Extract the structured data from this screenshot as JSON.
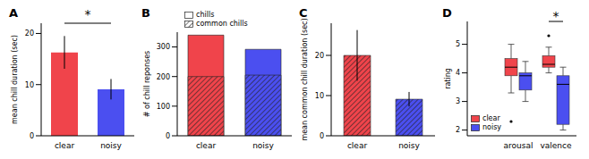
{
  "chart_data": [
    {
      "type": "bar",
      "title": "A",
      "categories": [
        "clear",
        "noisy"
      ],
      "values": [
        16.3,
        9.1
      ],
      "errors": [
        3.2,
        2.0
      ],
      "colors": [
        "#f0444b",
        "#4b4ff0"
      ],
      "y_label": "mean chill duration (sec)",
      "ylim": [
        0,
        22
      ],
      "yticks": [
        0,
        10,
        20
      ],
      "annotations": [
        {
          "text": "*",
          "between": [
            "clear",
            "noisy"
          ]
        }
      ]
    },
    {
      "type": "bar",
      "title": "B",
      "categories": [
        "clear",
        "noisy"
      ],
      "series": [
        {
          "name": "chills",
          "values": [
            340,
            292
          ]
        },
        {
          "name": "common chills",
          "values": [
            200,
            205
          ]
        }
      ],
      "colors": [
        "#f0444b",
        "#4b4ff0"
      ],
      "y_label": "# of chill reponses",
      "ylim": [
        0,
        350
      ],
      "yticks": [
        0,
        100,
        200,
        300
      ],
      "legend": "upper left"
    },
    {
      "type": "bar",
      "title": "C",
      "categories": [
        "clear",
        "noisy"
      ],
      "values": [
        20.0,
        9.1
      ],
      "errors": [
        6.3,
        1.8
      ],
      "colors": [
        "#f0444b",
        "#4b4ff0"
      ],
      "y_label": "mean common chill duration (sec)",
      "ylim": [
        0,
        28
      ],
      "yticks": [
        0,
        10,
        20
      ]
    },
    {
      "type": "box",
      "title": "D",
      "categories": [
        "arousal",
        "valence"
      ],
      "series": [
        {
          "name": "clear",
          "color": "#f0444b",
          "values": [
            {
              "min": 3.3,
              "q1": 3.9,
              "median": 4.2,
              "q3": 4.5,
              "max": 5.0,
              "outliers": [
                2.3
              ]
            },
            {
              "min": 4.0,
              "q1": 4.2,
              "median": 4.3,
              "q3": 4.6,
              "max": 4.9,
              "outliers": [
                5.3
              ]
            }
          ]
        },
        {
          "name": "noisy",
          "color": "#4b4ff0",
          "values": [
            {
              "min": 3.0,
              "q1": 3.4,
              "median": 3.9,
              "q3": 4.0,
              "max": 4.4,
              "outliers": []
            },
            {
              "min": 2.0,
              "q1": 2.2,
              "median": 3.6,
              "q3": 3.9,
              "max": 4.2,
              "outliers": []
            }
          ]
        }
      ],
      "y_label": "rating",
      "ylim": [
        1.8,
        5.8
      ],
      "yticks": [
        2,
        3,
        4,
        5
      ],
      "legend": "lower left",
      "annotations": [
        {
          "text": "*",
          "category": "valence",
          "between": [
            "clear",
            "noisy"
          ]
        }
      ]
    }
  ]
}
